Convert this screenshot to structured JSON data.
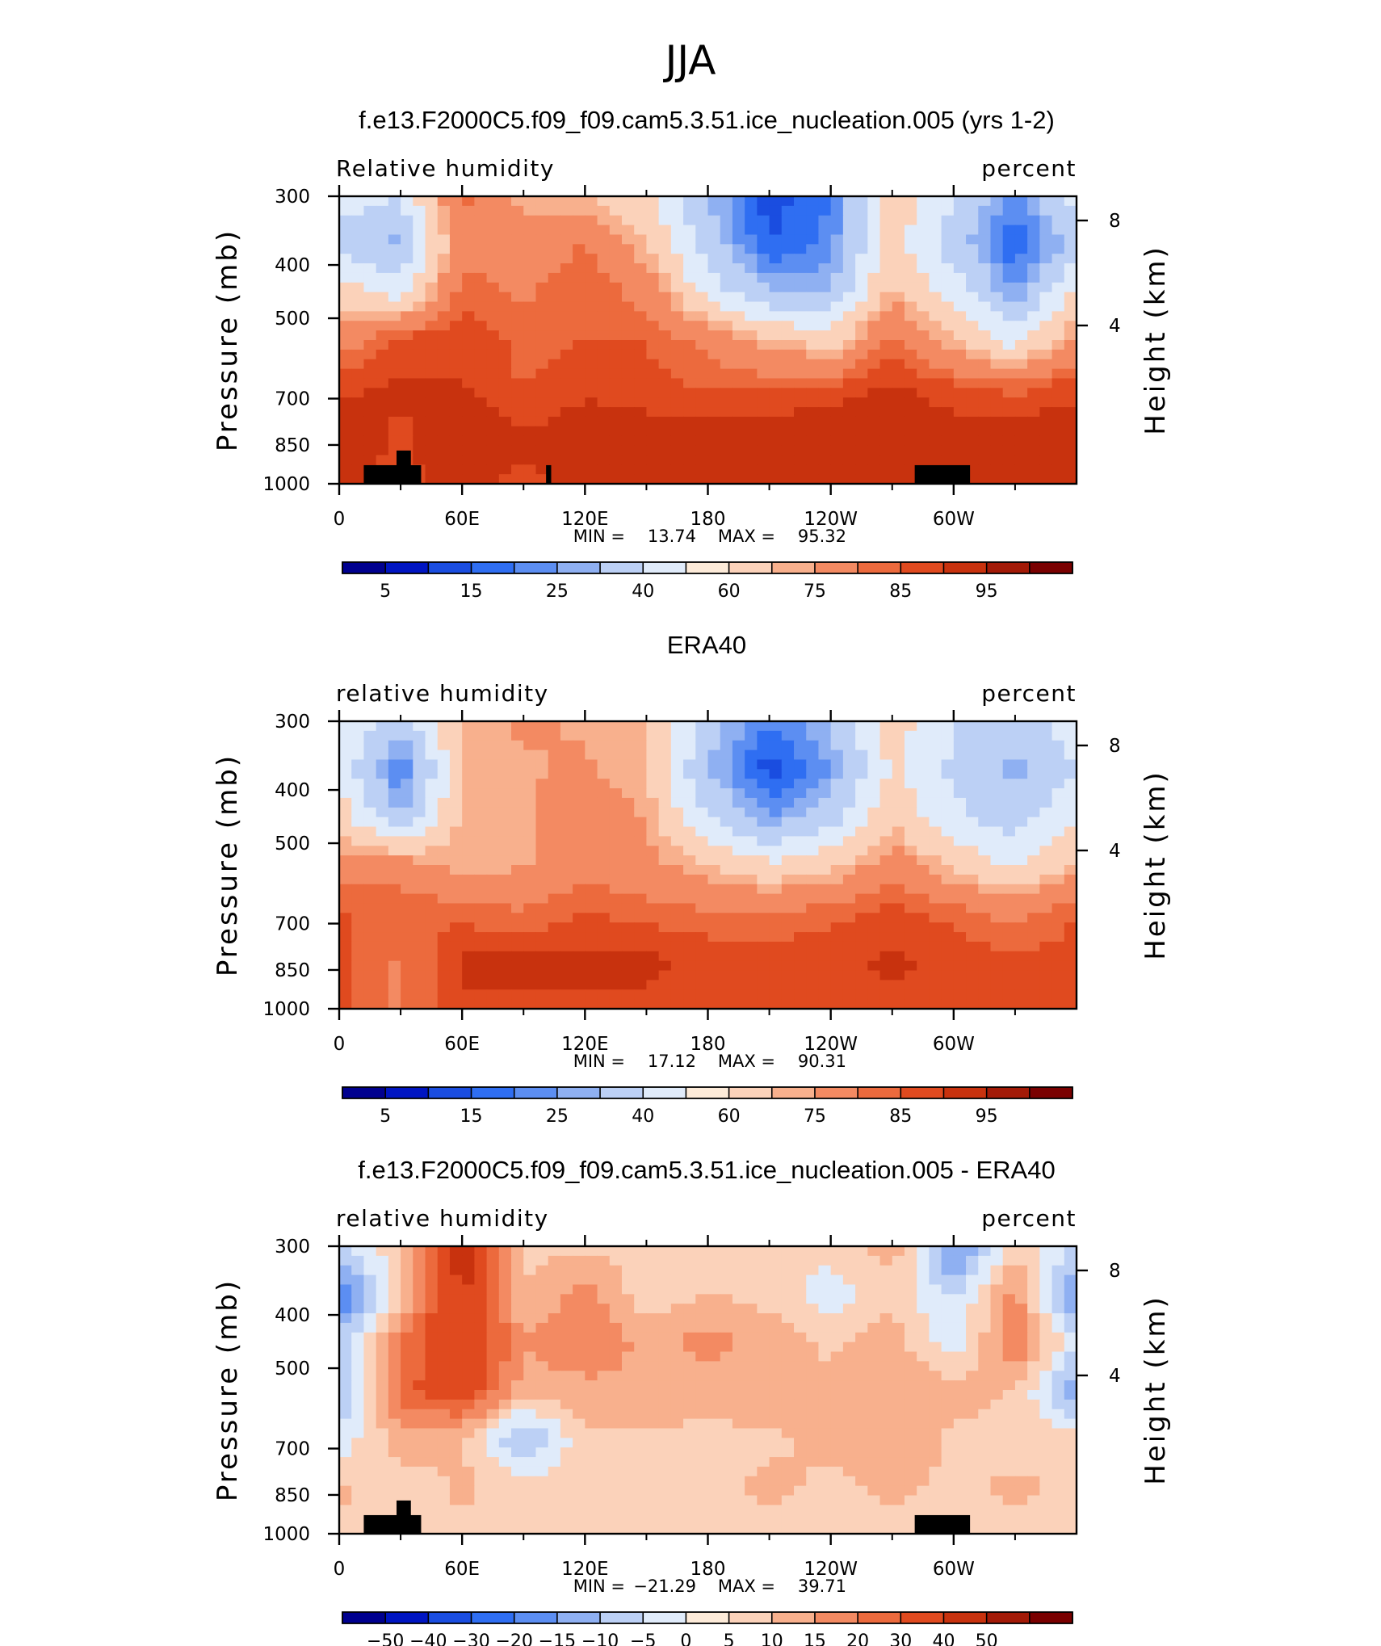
{
  "figure": {
    "title": "JJA"
  },
  "longitude_ticks": [
    "0",
    "60E",
    "120E",
    "180",
    "120W",
    "60W"
  ],
  "pressure_ticks": [
    "300",
    "400",
    "500",
    "700",
    "850",
    "1000"
  ],
  "height_ticks": [
    "8",
    "4"
  ],
  "pressure_label": "Pressure (mb)",
  "height_label": "Height (km)",
  "colormap": [
    "#00008f",
    "#0015c2",
    "#1a4de0",
    "#2f6ef2",
    "#5c8ef2",
    "#8fb0f2",
    "#bcd0f5",
    "#e0ebfa",
    "#fdebd9",
    "#fbd2ba",
    "#f8b08d",
    "#f38a62",
    "#ec6a3d",
    "#e04a1f",
    "#c8320e",
    "#a31a07",
    "#7a0000"
  ],
  "land_color": "#000000",
  "panels": [
    {
      "id": "model",
      "title": "f.e13.F2000C5.f09_f09.cam5.3.51.ice_nucleation.005 (yrs 1-2)",
      "left_label": "Relative humidity",
      "right_label": "percent",
      "min_label": "MIN =",
      "min_value": "13.74",
      "max_label": "MAX =",
      "max_value": "95.32",
      "colorbar_labels": [
        "5",
        "15",
        "25",
        "40",
        "60",
        "75",
        "85",
        "95"
      ],
      "colorbar_levels": [
        5,
        10,
        15,
        20,
        25,
        30,
        40,
        50,
        60,
        65,
        75,
        80,
        85,
        90,
        95
      ],
      "has_land_mask": true
    },
    {
      "id": "obs",
      "title": "ERA40",
      "left_label": "relative humidity",
      "right_label": "percent",
      "min_label": "MIN =",
      "min_value": "17.12",
      "max_label": "MAX =",
      "max_value": "90.31",
      "colorbar_labels": [
        "5",
        "15",
        "25",
        "40",
        "60",
        "75",
        "85",
        "95"
      ],
      "colorbar_levels": [
        5,
        10,
        15,
        20,
        25,
        30,
        40,
        50,
        60,
        65,
        75,
        80,
        85,
        90,
        95
      ],
      "has_land_mask": false
    },
    {
      "id": "diff",
      "title": "f.e13.F2000C5.f09_f09.cam5.3.51.ice_nucleation.005 - ERA40",
      "left_label": "relative humidity",
      "right_label": "percent",
      "min_label": "MIN =",
      "min_value": "−21.29",
      "max_label": "MAX =",
      "max_value": "39.71",
      "colorbar_labels": [
        "−50",
        "−40",
        "−30",
        "−20",
        "−15",
        "−10",
        "−5",
        "0",
        "5",
        "10",
        "15",
        "20",
        "30",
        "40",
        "50"
      ],
      "colorbar_levels": [
        -50,
        -40,
        -30,
        -20,
        -15,
        -10,
        -5,
        0,
        5,
        10,
        15,
        20,
        30,
        40,
        50
      ],
      "has_land_mask": true
    }
  ],
  "chart_data": [
    {
      "type": "heatmap",
      "title": "f.e13.F2000C5.f09_f09.cam5.3.51.ice_nucleation.005 (yrs 1-2)",
      "xlabel": "",
      "ylabel": "Pressure (mb)",
      "x": [
        0,
        30,
        60,
        90,
        120,
        150,
        180,
        210,
        240,
        270,
        300,
        330,
        360
      ],
      "y": [
        300,
        400,
        500,
        700,
        850,
        925,
        1000
      ],
      "values": [
        [
          45,
          40,
          78,
          62,
          60,
          52,
          30,
          12,
          20,
          56,
          40,
          22,
          44
        ],
        [
          35,
          28,
          72,
          68,
          76,
          60,
          35,
          15,
          22,
          55,
          35,
          15,
          34
        ],
        [
          55,
          45,
          78,
          74,
          80,
          72,
          45,
          30,
          30,
          62,
          45,
          25,
          52
        ],
        [
          70,
          82,
          85,
          78,
          80,
          80,
          72,
          62,
          55,
          78,
          60,
          45,
          68
        ],
        [
          84,
          86,
          85,
          80,
          84,
          82,
          80,
          80,
          82,
          86,
          82,
          78,
          84
        ],
        [
          88,
          84,
          90,
          86,
          88,
          88,
          88,
          89,
          89,
          90,
          88,
          90,
          88
        ],
        [
          86,
          84,
          86,
          84,
          86,
          86,
          86,
          86,
          86,
          86,
          86,
          86,
          86
        ]
      ],
      "zlim": [
        13.74,
        95.32
      ]
    },
    {
      "type": "heatmap",
      "title": "ERA40",
      "xlabel": "",
      "ylabel": "Pressure (mb)",
      "x": [
        0,
        30,
        60,
        90,
        120,
        150,
        180,
        210,
        240,
        270,
        300,
        330,
        360
      ],
      "y": [
        300,
        400,
        500,
        700,
        850,
        925,
        1000
      ],
      "values": [
        [
          50,
          35,
          62,
          66,
          64,
          60,
          35,
          20,
          30,
          55,
          40,
          35,
          45
        ],
        [
          48,
          18,
          60,
          64,
          66,
          60,
          30,
          12,
          25,
          52,
          38,
          28,
          40
        ],
        [
          55,
          30,
          62,
          64,
          74,
          64,
          40,
          25,
          35,
          58,
          42,
          35,
          50
        ],
        [
          70,
          70,
          62,
          64,
          72,
          68,
          60,
          52,
          58,
          70,
          58,
          48,
          62
        ],
        [
          80,
          80,
          78,
          76,
          80,
          78,
          76,
          76,
          78,
          82,
          78,
          72,
          80
        ],
        [
          82,
          74,
          86,
          86,
          87,
          86,
          84,
          82,
          84,
          86,
          84,
          82,
          82
        ],
        [
          82,
          74,
          84,
          84,
          84,
          84,
          82,
          82,
          82,
          84,
          82,
          82,
          82
        ]
      ],
      "zlim": [
        17.12,
        90.31
      ]
    },
    {
      "type": "heatmap",
      "title": "f.e13.F2000C5.f09_f09.cam5.3.51.ice_nucleation.005 - ERA40",
      "xlabel": "",
      "ylabel": "Pressure (mb)",
      "x": [
        0,
        30,
        60,
        90,
        120,
        150,
        180,
        210,
        240,
        270,
        300,
        330,
        360
      ],
      "y": [
        300,
        400,
        500,
        700,
        850,
        925,
        1000
      ],
      "values": [
        [
          -5,
          3,
          35,
          4,
          4,
          2,
          2,
          4,
          2,
          8,
          -18,
          2,
          -5
        ],
        [
          -22,
          4,
          32,
          5,
          12,
          2,
          5,
          3,
          -3,
          3,
          -6,
          12,
          -18
        ],
        [
          -8,
          15,
          30,
          10,
          15,
          8,
          12,
          8,
          4,
          8,
          -4,
          15,
          -5
        ],
        [
          -12,
          18,
          25,
          8,
          8,
          10,
          6,
          10,
          6,
          10,
          8,
          5,
          -14
        ],
        [
          -4,
          8,
          6,
          -12,
          4,
          4,
          4,
          4,
          6,
          10,
          4,
          2,
          2
        ],
        [
          6,
          2,
          6,
          2,
          4,
          2,
          4,
          6,
          4,
          6,
          4,
          6,
          4
        ],
        [
          4,
          4,
          4,
          4,
          4,
          4,
          4,
          4,
          4,
          4,
          4,
          4,
          4
        ]
      ],
      "zlim": [
        -21.29,
        39.71
      ]
    }
  ]
}
